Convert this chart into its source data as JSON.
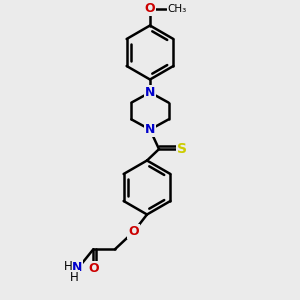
{
  "background_color": "#ebebeb",
  "bond_color": "#000000",
  "N_color": "#0000cc",
  "O_color": "#cc0000",
  "S_color": "#cccc00",
  "line_width": 1.8,
  "figsize": [
    3.0,
    3.0
  ],
  "dpi": 100,
  "xlim": [
    0,
    10
  ],
  "ylim": [
    0,
    10
  ]
}
